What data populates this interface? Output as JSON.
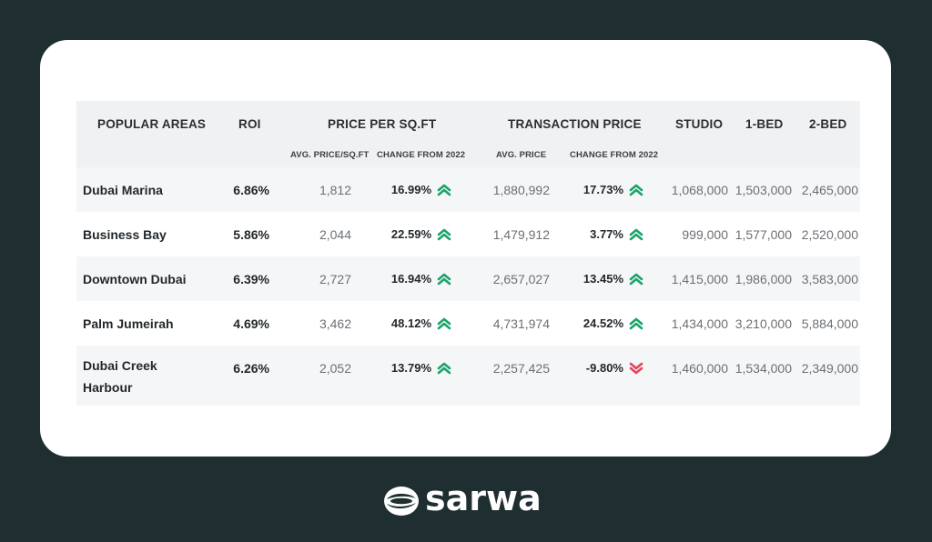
{
  "headers": {
    "popular_areas": "POPULAR AREAS",
    "roi": "ROI",
    "price_per_sqft": "PRICE PER SQ.FT",
    "transaction_price": "TRANSACTION PRICE",
    "studio": "STUDIO",
    "one_bed": "1-BED",
    "two_bed": "2-BED",
    "avg_price_sqft": "AVG. PRICE/SQ.FT",
    "change_from_2022_a": "CHANGE FROM 2022",
    "avg_price": "AVG. PRICE",
    "change_from_2022_b": "CHANGE FROM 2022"
  },
  "rows": [
    {
      "area": "Dubai Marina",
      "roi": "6.86%",
      "avg_sqft": "1,812",
      "chg_sqft": "16.99%",
      "chg_sqft_dir": "up",
      "avg_price": "1,880,992",
      "chg_price": "17.73%",
      "chg_price_dir": "up",
      "studio": "1,068,000",
      "one_bed": "1,503,000",
      "two_bed": "2,465,000"
    },
    {
      "area": "Business Bay",
      "roi": "5.86%",
      "avg_sqft": "2,044",
      "chg_sqft": "22.59%",
      "chg_sqft_dir": "up",
      "avg_price": "1,479,912",
      "chg_price": "3.77%",
      "chg_price_dir": "up",
      "studio": "999,000",
      "one_bed": "1,577,000",
      "two_bed": "2,520,000"
    },
    {
      "area": "Downtown Dubai",
      "roi": "6.39%",
      "avg_sqft": "2,727",
      "chg_sqft": "16.94%",
      "chg_sqft_dir": "up",
      "avg_price": "2,657,027",
      "chg_price": "13.45%",
      "chg_price_dir": "up",
      "studio": "1,415,000",
      "one_bed": "1,986,000",
      "two_bed": "3,583,000"
    },
    {
      "area": "Palm Jumeirah",
      "roi": "4.69%",
      "avg_sqft": "3,462",
      "chg_sqft": "48.12%",
      "chg_sqft_dir": "up",
      "avg_price": "4,731,974",
      "chg_price": "24.52%",
      "chg_price_dir": "up",
      "studio": "1,434,000",
      "one_bed": "3,210,000",
      "two_bed": "5,884,000"
    },
    {
      "area": "Dubai Creek Harbour",
      "roi": "6.26%",
      "avg_sqft": "2,052",
      "chg_sqft": "13.79%",
      "chg_sqft_dir": "up",
      "avg_price": "2,257,425",
      "chg_price": "-9.80%",
      "chg_price_dir": "down",
      "studio": "1,460,000",
      "one_bed": "1,534,000",
      "two_bed": "2,349,000"
    }
  ],
  "colors": {
    "up": "#1aa36a",
    "down": "#e0455d"
  },
  "logo": {
    "text": "sarwa"
  }
}
